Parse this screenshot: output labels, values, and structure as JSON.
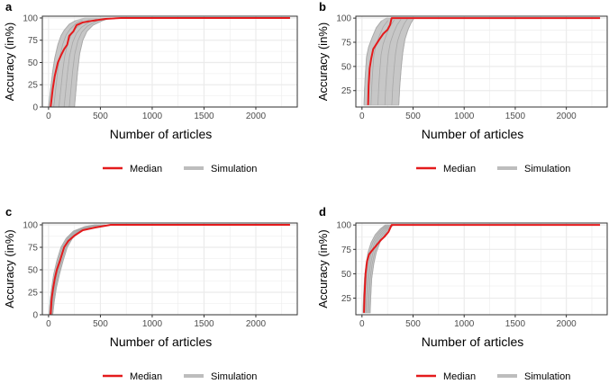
{
  "chart_data": [
    {
      "type": "line",
      "panel_label": "a",
      "xlabel": "Number of articles",
      "ylabel": "Accuracy (in%)",
      "xlim": [
        -60,
        2400
      ],
      "ylim": [
        0,
        102
      ],
      "xticks": [
        0,
        500,
        1000,
        1500,
        2000
      ],
      "yticks": [
        0,
        25,
        50,
        75,
        100
      ],
      "grid": true,
      "legend_position": "bottom",
      "simulation_band": {
        "left": [
          [
            0,
            0
          ],
          [
            20,
            20
          ],
          [
            40,
            40
          ],
          [
            60,
            55
          ],
          [
            90,
            70
          ],
          [
            120,
            80
          ],
          [
            150,
            86
          ],
          [
            200,
            93
          ],
          [
            260,
            97
          ],
          [
            350,
            100
          ]
        ],
        "right": [
          [
            250,
            0
          ],
          [
            265,
            20
          ],
          [
            280,
            40
          ],
          [
            300,
            60
          ],
          [
            330,
            75
          ],
          [
            370,
            85
          ],
          [
            430,
            92
          ],
          [
            520,
            97
          ],
          [
            600,
            100
          ]
        ]
      },
      "series": [
        {
          "name": "Median",
          "x": [
            20,
            40,
            60,
            90,
            120,
            150,
            180,
            200,
            240,
            270,
            330,
            430,
            550,
            700,
            2330
          ],
          "y": [
            0,
            20,
            35,
            50,
            58,
            65,
            70,
            80,
            85,
            92,
            95,
            97,
            99,
            100,
            100
          ]
        },
        {
          "name": "Simulation"
        }
      ]
    },
    {
      "type": "line",
      "panel_label": "b",
      "xlabel": "Number of articles",
      "ylabel": "Accuracy (in%)",
      "xlim": [
        -60,
        2400
      ],
      "ylim": [
        8,
        102
      ],
      "xticks": [
        0,
        500,
        1000,
        1500,
        2000
      ],
      "yticks": [
        25,
        50,
        75,
        100
      ],
      "grid": true,
      "legend_position": "bottom",
      "simulation_band": {
        "left": [
          [
            20,
            10
          ],
          [
            25,
            25
          ],
          [
            32,
            40
          ],
          [
            45,
            60
          ],
          [
            65,
            70
          ],
          [
            100,
            80
          ],
          [
            140,
            90
          ],
          [
            190,
            97
          ],
          [
            240,
            100
          ]
        ],
        "right": [
          [
            360,
            10
          ],
          [
            370,
            30
          ],
          [
            385,
            50
          ],
          [
            400,
            65
          ],
          [
            420,
            78
          ],
          [
            450,
            88
          ],
          [
            480,
            95
          ],
          [
            510,
            100
          ]
        ]
      },
      "series": [
        {
          "name": "Median",
          "x": [
            60,
            65,
            75,
            90,
            110,
            140,
            170,
            210,
            250,
            275,
            290,
            2330
          ],
          "y": [
            10,
            30,
            48,
            58,
            68,
            73,
            78,
            84,
            88,
            93,
            100,
            100
          ]
        },
        {
          "name": "Simulation"
        }
      ]
    },
    {
      "type": "line",
      "panel_label": "c",
      "xlabel": "Number of articles",
      "ylabel": "Accuracy (in%)",
      "xlim": [
        -60,
        2400
      ],
      "ylim": [
        0,
        102
      ],
      "xticks": [
        0,
        500,
        1000,
        1500,
        2000
      ],
      "yticks": [
        0,
        25,
        50,
        75,
        100
      ],
      "grid": true,
      "legend_position": "bottom",
      "simulation_band": {
        "left": [
          [
            5,
            0
          ],
          [
            15,
            15
          ],
          [
            30,
            30
          ],
          [
            50,
            45
          ],
          [
            80,
            60
          ],
          [
            120,
            75
          ],
          [
            170,
            85
          ],
          [
            240,
            93
          ],
          [
            350,
            98
          ],
          [
            450,
            100
          ]
        ],
        "right": [
          [
            40,
            0
          ],
          [
            55,
            15
          ],
          [
            75,
            30
          ],
          [
            105,
            45
          ],
          [
            140,
            60
          ],
          [
            180,
            75
          ],
          [
            230,
            85
          ],
          [
            300,
            93
          ],
          [
            420,
            98
          ],
          [
            550,
            100
          ]
        ]
      },
      "series": [
        {
          "name": "Median",
          "x": [
            20,
            30,
            45,
            60,
            80,
            110,
            150,
            190,
            250,
            330,
            450,
            600,
            2330
          ],
          "y": [
            0,
            18,
            30,
            40,
            50,
            60,
            75,
            82,
            88,
            94,
            97,
            100,
            100
          ]
        },
        {
          "name": "Simulation"
        }
      ]
    },
    {
      "type": "line",
      "panel_label": "d",
      "xlabel": "Number of articles",
      "ylabel": "Accuracy (in%)",
      "xlim": [
        -60,
        2400
      ],
      "ylim": [
        8,
        102
      ],
      "xticks": [
        0,
        500,
        1000,
        1500,
        2000
      ],
      "yticks": [
        25,
        50,
        75,
        100
      ],
      "grid": true,
      "legend_position": "bottom",
      "simulation_band": {
        "left": [
          [
            10,
            10
          ],
          [
            15,
            25
          ],
          [
            25,
            45
          ],
          [
            40,
            60
          ],
          [
            60,
            72
          ],
          [
            90,
            82
          ],
          [
            130,
            90
          ],
          [
            180,
            96
          ],
          [
            230,
            100
          ]
        ],
        "right": [
          [
            80,
            10
          ],
          [
            85,
            25
          ],
          [
            95,
            45
          ],
          [
            115,
            60
          ],
          [
            140,
            72
          ],
          [
            175,
            82
          ],
          [
            220,
            90
          ],
          [
            260,
            96
          ],
          [
            310,
            100
          ]
        ]
      },
      "series": [
        {
          "name": "Median",
          "x": [
            20,
            25,
            35,
            50,
            70,
            100,
            140,
            180,
            220,
            260,
            290,
            2330
          ],
          "y": [
            10,
            28,
            50,
            63,
            70,
            74,
            79,
            84,
            88,
            93,
            100,
            100
          ]
        },
        {
          "name": "Simulation"
        }
      ]
    }
  ],
  "colors": {
    "median": "#e41a1c",
    "simulation": "#bdbdbd",
    "grid": "#ebebeb",
    "axis_text": "#4d4d4d",
    "panel_border": "#333333"
  }
}
